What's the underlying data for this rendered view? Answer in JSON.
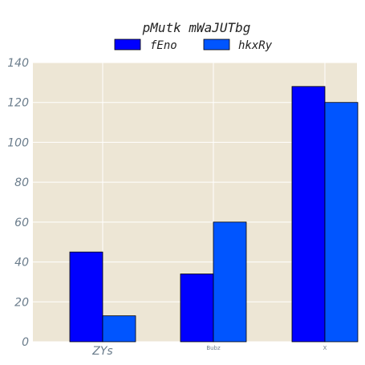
{
  "chart_data": {
    "type": "bar",
    "title": "pMutk mWaJUTbg",
    "xlabel": "",
    "ylabel": "",
    "categories": [
      "ZYs",
      "Bubz",
      "X"
    ],
    "series": [
      {
        "name": "fEno",
        "values": [
          45,
          34,
          128
        ],
        "color": "#0000ff"
      },
      {
        "name": "hkxRy",
        "values": [
          13,
          60,
          120
        ],
        "color": "#0055ff"
      }
    ],
    "ylim": [
      0,
      140
    ],
    "yticks": [
      0,
      20,
      40,
      60,
      80,
      100,
      120,
      140
    ],
    "grid": true,
    "legend_position": "top-center",
    "plot_background": "#ede6d5"
  }
}
